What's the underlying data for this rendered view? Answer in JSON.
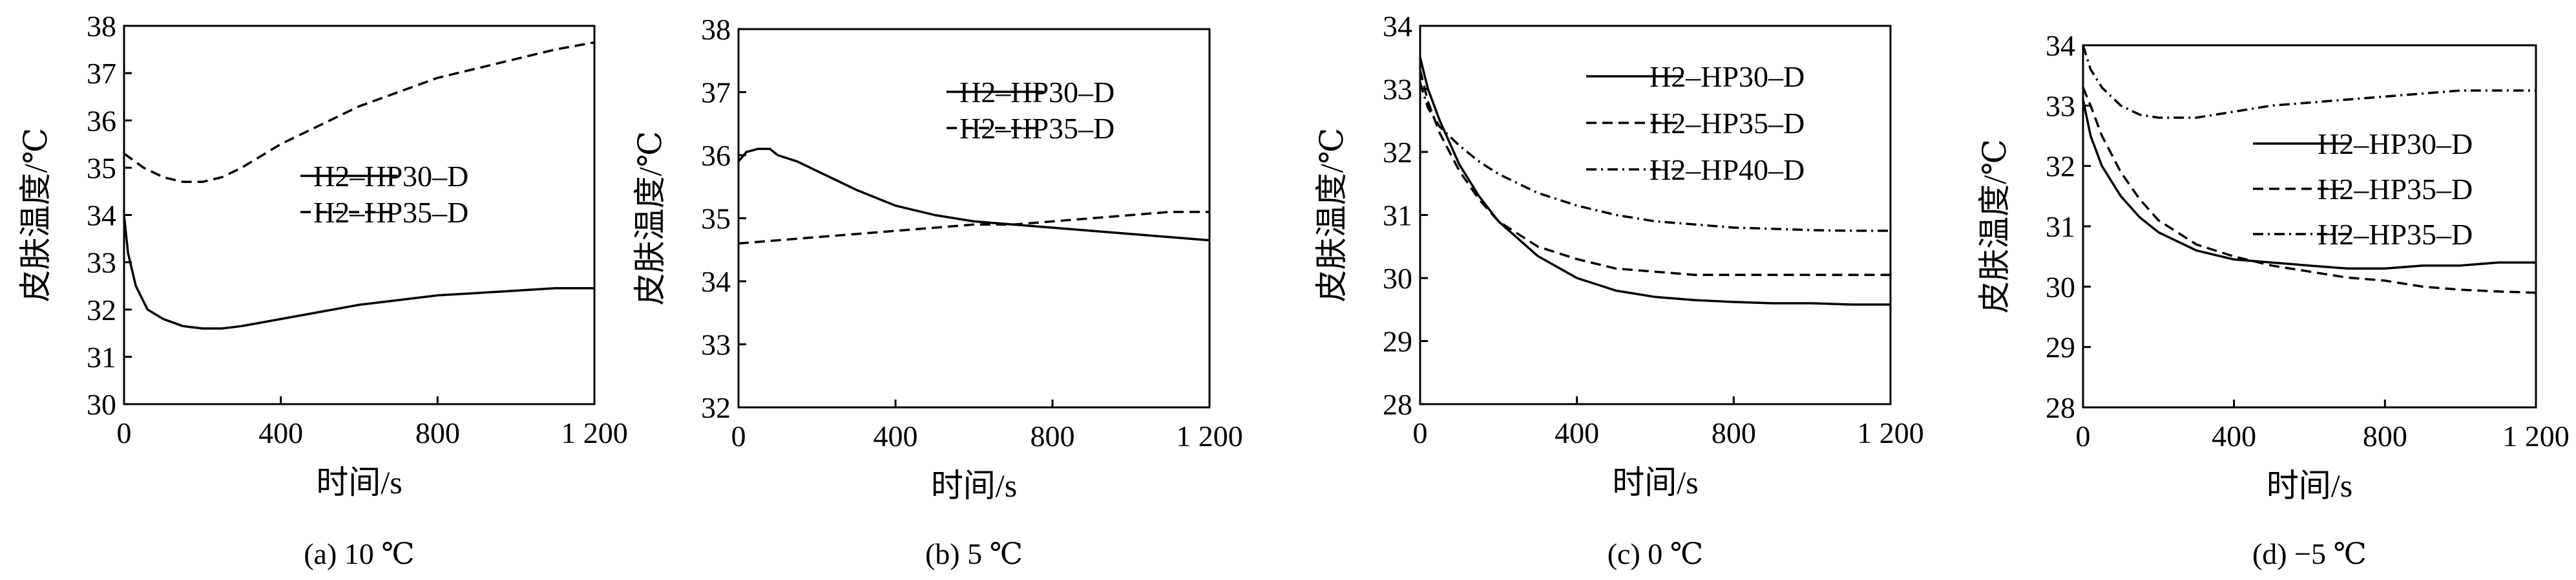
{
  "chart_data": [
    {
      "type": "line",
      "caption": "(a) 10 ℃",
      "xlabel": "时间/s",
      "ylabel": "皮肤温度/℃",
      "xlim": [
        0,
        1200
      ],
      "ylim": [
        30,
        38
      ],
      "xticks": [
        0,
        400,
        800,
        1200
      ],
      "xtick_labels": [
        "0",
        "400",
        "800",
        "1 200"
      ],
      "yticks": [
        30,
        31,
        32,
        33,
        34,
        35,
        36,
        37,
        38
      ],
      "ytick_labels": [
        "30",
        "31",
        "32",
        "33",
        "34",
        "35",
        "36",
        "37",
        "38"
      ],
      "grid": false,
      "legend_position": "right",
      "series": [
        {
          "name": "H2–HP30–D",
          "style": "solid",
          "x": [
            0,
            10,
            30,
            60,
            100,
            150,
            200,
            250,
            300,
            400,
            500,
            600,
            700,
            800,
            900,
            1000,
            1100,
            1200
          ],
          "y": [
            34.0,
            33.2,
            32.5,
            32.0,
            31.8,
            31.65,
            31.6,
            31.6,
            31.65,
            31.8,
            31.95,
            32.1,
            32.2,
            32.3,
            32.35,
            32.4,
            32.45,
            32.45
          ]
        },
        {
          "name": "H2–HP35–D",
          "style": "dashed",
          "x": [
            0,
            50,
            100,
            150,
            200,
            250,
            300,
            400,
            500,
            600,
            700,
            800,
            900,
            1000,
            1100,
            1200
          ],
          "y": [
            35.3,
            35.0,
            34.8,
            34.7,
            34.7,
            34.8,
            35.0,
            35.5,
            35.9,
            36.3,
            36.6,
            36.9,
            37.1,
            37.3,
            37.5,
            37.65
          ]
        }
      ]
    },
    {
      "type": "line",
      "caption": "(b) 5 ℃",
      "xlabel": "时间/s",
      "ylabel": "皮肤温度/℃",
      "xlim": [
        0,
        1200
      ],
      "ylim": [
        32,
        38
      ],
      "xticks": [
        0,
        400,
        800,
        1200
      ],
      "xtick_labels": [
        "0",
        "400",
        "800",
        "1 200"
      ],
      "yticks": [
        32,
        33,
        34,
        35,
        36,
        37,
        38
      ],
      "ytick_labels": [
        "32",
        "33",
        "34",
        "35",
        "36",
        "37",
        "38"
      ],
      "grid": false,
      "legend_position": "top-right",
      "series": [
        {
          "name": "H2–HP30–D",
          "style": "solid",
          "x": [
            0,
            20,
            50,
            80,
            100,
            150,
            200,
            250,
            300,
            400,
            500,
            600,
            700,
            800,
            900,
            1000,
            1100,
            1200
          ],
          "y": [
            35.9,
            36.05,
            36.1,
            36.1,
            36.0,
            35.9,
            35.75,
            35.6,
            35.45,
            35.2,
            35.05,
            34.95,
            34.9,
            34.85,
            34.8,
            34.75,
            34.7,
            34.65
          ]
        },
        {
          "name": "H2–HP35–D",
          "style": "dashed",
          "x": [
            0,
            100,
            200,
            300,
            400,
            500,
            600,
            700,
            800,
            900,
            1000,
            1100,
            1200
          ],
          "y": [
            34.6,
            34.65,
            34.7,
            34.75,
            34.8,
            34.85,
            34.9,
            34.9,
            34.95,
            35.0,
            35.05,
            35.1,
            35.1
          ]
        }
      ]
    },
    {
      "type": "line",
      "caption": "(c) 0 ℃",
      "xlabel": "时间/s",
      "ylabel": "皮肤温度/℃",
      "xlim": [
        0,
        1200
      ],
      "ylim": [
        28,
        34
      ],
      "xticks": [
        0,
        400,
        800,
        1200
      ],
      "xtick_labels": [
        "0",
        "400",
        "800",
        "1 200"
      ],
      "yticks": [
        28,
        29,
        30,
        31,
        32,
        33,
        34
      ],
      "ytick_labels": [
        "28",
        "29",
        "30",
        "31",
        "32",
        "33",
        "34"
      ],
      "grid": false,
      "legend_position": "top-right",
      "series": [
        {
          "name": "H2–HP30–D",
          "style": "solid",
          "x": [
            0,
            20,
            50,
            100,
            150,
            200,
            300,
            400,
            500,
            600,
            700,
            800,
            900,
            1000,
            1100,
            1200
          ],
          "y": [
            33.5,
            33.0,
            32.5,
            31.8,
            31.3,
            30.9,
            30.35,
            30.0,
            29.8,
            29.7,
            29.65,
            29.62,
            29.6,
            29.6,
            29.58,
            29.58
          ]
        },
        {
          "name": "H2–HP35–D",
          "style": "dashed",
          "x": [
            0,
            20,
            50,
            100,
            150,
            200,
            300,
            400,
            500,
            600,
            700,
            800,
            900,
            1000,
            1100,
            1200
          ],
          "y": [
            33.3,
            32.8,
            32.3,
            31.7,
            31.25,
            30.9,
            30.5,
            30.3,
            30.15,
            30.1,
            30.05,
            30.05,
            30.05,
            30.05,
            30.05,
            30.05
          ]
        },
        {
          "name": "H2–HP40–D",
          "style": "dashdot",
          "x": [
            0,
            20,
            50,
            100,
            150,
            200,
            300,
            400,
            500,
            600,
            700,
            800,
            900,
            1000,
            1100,
            1200
          ],
          "y": [
            33.1,
            32.7,
            32.4,
            32.1,
            31.85,
            31.65,
            31.35,
            31.15,
            31.0,
            30.9,
            30.85,
            30.8,
            30.78,
            30.76,
            30.75,
            30.75
          ]
        }
      ]
    },
    {
      "type": "line",
      "caption": "(d) −5 ℃",
      "xlabel": "时间/s",
      "ylabel": "皮肤温度/℃",
      "xlim": [
        0,
        1200
      ],
      "ylim": [
        28,
        34
      ],
      "xticks": [
        0,
        400,
        800,
        1200
      ],
      "xtick_labels": [
        "0",
        "400",
        "800",
        "1 200"
      ],
      "yticks": [
        28,
        29,
        30,
        31,
        32,
        33,
        34
      ],
      "ytick_labels": [
        "28",
        "29",
        "30",
        "31",
        "32",
        "33",
        "34"
      ],
      "grid": false,
      "legend_position": "right",
      "series": [
        {
          "name": "H2–HP30–D",
          "style": "solid",
          "x": [
            0,
            20,
            50,
            100,
            150,
            200,
            300,
            400,
            500,
            600,
            700,
            800,
            900,
            1000,
            1100,
            1200
          ],
          "y": [
            33.1,
            32.5,
            32.0,
            31.5,
            31.15,
            30.9,
            30.6,
            30.45,
            30.4,
            30.35,
            30.3,
            30.3,
            30.35,
            30.35,
            30.4,
            30.4
          ]
        },
        {
          "name": "H2–HP35–D",
          "style": "dashed",
          "x": [
            0,
            20,
            50,
            100,
            150,
            200,
            300,
            400,
            500,
            600,
            700,
            800,
            900,
            1000,
            1100,
            1200
          ],
          "y": [
            33.3,
            33.0,
            32.5,
            31.9,
            31.45,
            31.1,
            30.7,
            30.5,
            30.35,
            30.25,
            30.15,
            30.1,
            30.0,
            29.95,
            29.92,
            29.9
          ]
        },
        {
          "name": "H2–HP35–D",
          "style": "dashdot",
          "x": [
            0,
            20,
            50,
            100,
            150,
            200,
            300,
            400,
            500,
            600,
            700,
            800,
            900,
            1000,
            1100,
            1200
          ],
          "y": [
            34.0,
            33.6,
            33.3,
            33.0,
            32.85,
            32.8,
            32.8,
            32.9,
            33.0,
            33.05,
            33.1,
            33.15,
            33.2,
            33.25,
            33.25,
            33.25
          ]
        }
      ]
    }
  ]
}
